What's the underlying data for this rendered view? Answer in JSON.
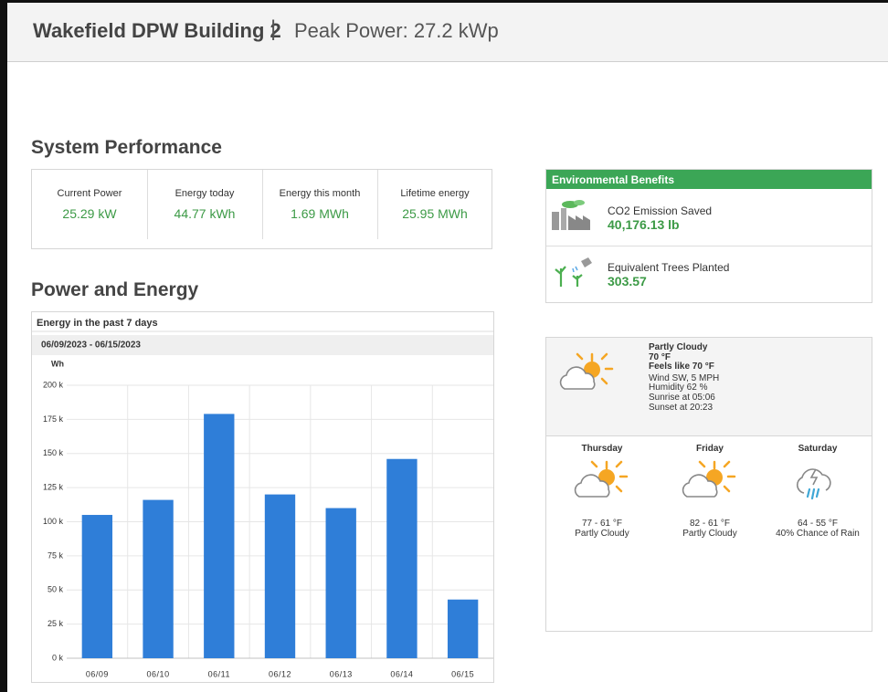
{
  "header": {
    "title": "Wakefield DPW Building 2",
    "separator": "|",
    "peak_power": "Peak Power: 27.2 kWp"
  },
  "performance": {
    "title": "System Performance",
    "metrics": [
      {
        "label": "Current Power",
        "value": "25.29 kW"
      },
      {
        "label": "Energy today",
        "value": "44.77 kWh"
      },
      {
        "label": "Energy this month",
        "value": "1.69 MWh"
      },
      {
        "label": "Lifetime energy",
        "value": "25.95 MWh"
      }
    ]
  },
  "power_energy_title": "Power and Energy",
  "chart_data": {
    "type": "bar",
    "title": "Energy in the past 7 days",
    "subtitle": "06/09/2023 - 06/15/2023",
    "y_label": "Wh",
    "categories": [
      "06/09",
      "06/10",
      "06/11",
      "06/12",
      "06/13",
      "06/14",
      "06/15"
    ],
    "values": [
      105000,
      116000,
      179000,
      120000,
      110000,
      146000,
      43000
    ],
    "color": "#2f7ed8",
    "ylim": [
      0,
      200000
    ],
    "yticks": [
      {
        "value": 0,
        "label": "0 k"
      },
      {
        "value": 25000,
        "label": "25 k"
      },
      {
        "value": 50000,
        "label": "50 k"
      },
      {
        "value": 75000,
        "label": "75 k"
      },
      {
        "value": 100000,
        "label": "100 k"
      },
      {
        "value": 125000,
        "label": "125 k"
      },
      {
        "value": 150000,
        "label": "150 k"
      },
      {
        "value": 175000,
        "label": "175 k"
      },
      {
        "value": 200000,
        "label": "200 k"
      }
    ],
    "grid": true
  },
  "environmental": {
    "title": "Environmental Benefits",
    "items": [
      {
        "label": "CO2 Emission Saved",
        "value": "40,176.13 lb"
      },
      {
        "label": "Equivalent Trees Planted",
        "value": "303.57"
      }
    ]
  },
  "weather": {
    "current": {
      "condition": "Partly Cloudy",
      "temperature": "70 °F",
      "feels_like": "Feels like 70 °F",
      "wind": "Wind SW, 5 MPH",
      "humidity": "Humidity 62 %",
      "sunrise": "Sunrise at 05:06",
      "sunset": "Sunset at 20:23"
    },
    "forecast": [
      {
        "day": "Thursday",
        "temperature": "77 - 61 °F",
        "condition": "Partly Cloudy"
      },
      {
        "day": "Friday",
        "temperature": "82 - 61 °F",
        "condition": "Partly Cloudy"
      },
      {
        "day": "Saturday",
        "temperature": "64 - 55 °F",
        "condition": "40% Chance of Rain"
      }
    ]
  }
}
